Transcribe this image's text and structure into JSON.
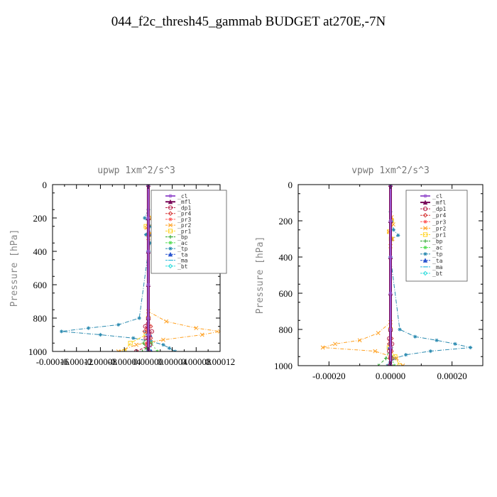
{
  "page": {
    "title": "044_f2c_thresh45_gammab  BUDGET at270E,-7N"
  },
  "legend_entries": [
    {
      "name": "_cl",
      "color": "#9b59d0"
    },
    {
      "name": "_mfl",
      "color": "#7a0a5a"
    },
    {
      "name": "_dp1",
      "color": "#b8224a"
    },
    {
      "name": "_pr4",
      "color": "#d63a3a"
    },
    {
      "name": "_pr3",
      "color": "#ff5a5a"
    },
    {
      "name": "_pr2",
      "color": "#ffa020"
    },
    {
      "name": "_pr1",
      "color": "#ffd21e"
    },
    {
      "name": "_bp",
      "color": "#2aa52a"
    },
    {
      "name": "_ac",
      "color": "#55dd55"
    },
    {
      "name": "_tp",
      "color": "#2a8ab0"
    },
    {
      "name": "_ta",
      "color": "#2a55d0"
    },
    {
      "name": "_ma",
      "color": "#33bbdd"
    },
    {
      "name": "_bt",
      "color": "#33dddd"
    }
  ],
  "chart_data": [
    {
      "type": "line",
      "title": "upwp   1xm^2/s^3",
      "ylabel": "Pressure [hPa]",
      "xlabel": "",
      "xlim": [
        -0.00016,
        0.00012
      ],
      "ylim": [
        1000,
        0
      ],
      "xtick_labels": [
        "-0.00016",
        "-0.00012",
        "-0.00008",
        "-0.00004",
        "0.00000",
        "0.00004",
        "0.00008",
        "0.00012"
      ],
      "ytick_labels": [
        "0",
        "200",
        "400",
        "600",
        "800",
        "1000"
      ],
      "series": [
        {
          "name": "_cl",
          "y": [
            0,
            200,
            400,
            600,
            800,
            900,
            1000
          ],
          "x": [
            0,
            0,
            0,
            0,
            0,
            0,
            0
          ]
        },
        {
          "name": "_mfl",
          "y": [
            0,
            200,
            400,
            600,
            800,
            900,
            1000
          ],
          "x": [
            0,
            0,
            0,
            0,
            0,
            0,
            0
          ]
        },
        {
          "name": "_dp1",
          "y": [
            800,
            850,
            880,
            920,
            960,
            1000
          ],
          "x": [
            0,
            -5e-06,
            6e-06,
            -4e-06,
            3e-06,
            -2e-05
          ]
        },
        {
          "name": "_pr4",
          "y": [
            800,
            850,
            880,
            920,
            960,
            1000
          ],
          "x": [
            0,
            4e-06,
            -6e-06,
            4e-06,
            -2e-06,
            1e-06
          ]
        },
        {
          "name": "_pr3",
          "y": [
            800,
            860,
            900,
            950,
            1000
          ],
          "x": [
            0,
            -3e-06,
            2e-06,
            -3e-06,
            0
          ]
        },
        {
          "name": "_pr2",
          "y": [
            200,
            230,
            260,
            290,
            320,
            760,
            820,
            860,
            880,
            900,
            930,
            960,
            1000
          ],
          "x": [
            5e-06,
            1e-05,
            -3e-06,
            4e-06,
            0,
            0,
            3e-05,
            8e-05,
            0.00012,
            9e-05,
            2.5e-05,
            -2e-05,
            -5e-05
          ]
        },
        {
          "name": "_pr1",
          "y": [
            200,
            250,
            300,
            800,
            900,
            950,
            1000
          ],
          "x": [
            4e-06,
            -4e-06,
            2e-06,
            0,
            -4e-06,
            -3e-05,
            -4e-05
          ]
        },
        {
          "name": "_bp",
          "y": [
            900,
            950,
            980,
            1000
          ],
          "x": [
            0,
            -8e-06,
            -3e-06,
            -1e-05
          ]
        },
        {
          "name": "_ac",
          "y": [
            900,
            950,
            1000
          ],
          "x": [
            0,
            5e-06,
            1.5e-05
          ]
        },
        {
          "name": "_tp",
          "y": [
            150,
            200,
            250,
            300,
            350,
            400,
            800,
            840,
            860,
            880,
            900,
            920,
            940,
            960,
            980,
            1000
          ],
          "x": [
            0,
            -6e-06,
            4e-06,
            -4e-06,
            3e-06,
            0,
            -1.5e-05,
            -5e-05,
            -0.0001,
            -0.000145,
            -8e-05,
            -2.5e-05,
            5e-06,
            2.5e-05,
            3.5e-05,
            4.5e-05
          ]
        },
        {
          "name": "_ta",
          "y": [
            200,
            300,
            400,
            800,
            900,
            1000
          ],
          "x": [
            0,
            3e-06,
            0,
            0,
            3e-06,
            5e-06
          ]
        },
        {
          "name": "_ma",
          "y": [
            800,
            860,
            880,
            900,
            950,
            1000
          ],
          "x": [
            0,
            -2e-06,
            -5e-06,
            -3e-06,
            2e-06,
            4e-06
          ]
        },
        {
          "name": "_bt",
          "y": [
            0,
            400,
            800,
            900,
            1000
          ],
          "x": [
            0,
            0,
            0,
            2e-06,
            -1e-06
          ]
        }
      ]
    },
    {
      "type": "line",
      "title": "vpwp   1xm^2/s^3",
      "ylabel": "Pressure [hPa]",
      "xlabel": "",
      "xlim": [
        -0.0003,
        0.0003
      ],
      "ylim": [
        1000,
        0
      ],
      "xtick_labels": [
        "-0.00020",
        "0.00000",
        "0.00020"
      ],
      "ytick_labels": [
        "0",
        "200",
        "400",
        "600",
        "800",
        "1000"
      ],
      "series": [
        {
          "name": "_cl",
          "y": [
            0,
            200,
            400,
            600,
            800,
            900,
            1000
          ],
          "x": [
            0,
            0,
            0,
            0,
            0,
            0,
            0
          ]
        },
        {
          "name": "_mfl",
          "y": [
            0,
            200,
            400,
            600,
            800,
            900,
            1000
          ],
          "x": [
            0,
            0,
            0,
            0,
            0,
            0,
            0
          ]
        },
        {
          "name": "_dp1",
          "y": [
            800,
            850,
            880,
            920,
            960,
            1000
          ],
          "x": [
            0,
            -4e-06,
            5e-06,
            -4e-06,
            3e-06,
            -2e-06
          ]
        },
        {
          "name": "_pr4",
          "y": [
            800,
            850,
            880,
            920,
            960,
            1000
          ],
          "x": [
            0,
            3e-06,
            -4e-06,
            3e-06,
            -2e-06,
            1e-06
          ]
        },
        {
          "name": "_pr3",
          "y": [
            800,
            860,
            900,
            950,
            1000
          ],
          "x": [
            0,
            -2e-06,
            2e-06,
            -2e-06,
            0
          ]
        },
        {
          "name": "_pr2",
          "y": [
            180,
            220,
            260,
            300,
            340,
            760,
            820,
            860,
            880,
            900,
            920,
            960,
            1000
          ],
          "x": [
            4e-06,
            9e-06,
            -5e-06,
            6e-06,
            0,
            0,
            -4e-05,
            -0.0001,
            -0.00018,
            -0.00022,
            -5e-05,
            2e-05,
            4e-05
          ]
        },
        {
          "name": "_pr1",
          "y": [
            200,
            260,
            300,
            800,
            900,
            950,
            1000
          ],
          "x": [
            4e-06,
            -4e-06,
            2e-06,
            0,
            -5e-06,
            1.5e-05,
            3e-05
          ]
        },
        {
          "name": "_bp",
          "y": [
            900,
            960,
            1000
          ],
          "x": [
            0,
            -1.5e-05,
            -4e-05
          ]
        },
        {
          "name": "_ac",
          "y": [
            900,
            950,
            1000
          ],
          "x": [
            0,
            4e-06,
            1.2e-05
          ]
        },
        {
          "name": "_tp",
          "y": [
            150,
            200,
            250,
            280,
            300,
            400,
            800,
            840,
            860,
            880,
            900,
            920,
            940,
            960,
            980,
            1000
          ],
          "x": [
            0,
            4e-06,
            1e-05,
            2.5e-05,
            4e-06,
            0,
            3e-05,
            8e-05,
            0.00015,
            0.00021,
            0.00026,
            0.00013,
            5e-05,
            1.5e-05,
            0,
            -1e-05
          ]
        },
        {
          "name": "_ta",
          "y": [
            200,
            300,
            400,
            800,
            900,
            1000
          ],
          "x": [
            0,
            4e-06,
            0,
            0,
            -3e-06,
            -5e-06
          ]
        },
        {
          "name": "_ma",
          "y": [
            800,
            860,
            880,
            900,
            950,
            1000
          ],
          "x": [
            0,
            -2e-06,
            -4e-06,
            -3e-06,
            2e-06,
            4e-06
          ]
        },
        {
          "name": "_bt",
          "y": [
            0,
            400,
            800,
            900,
            1000
          ],
          "x": [
            0,
            0,
            0,
            2e-06,
            -1e-06
          ]
        }
      ]
    }
  ]
}
